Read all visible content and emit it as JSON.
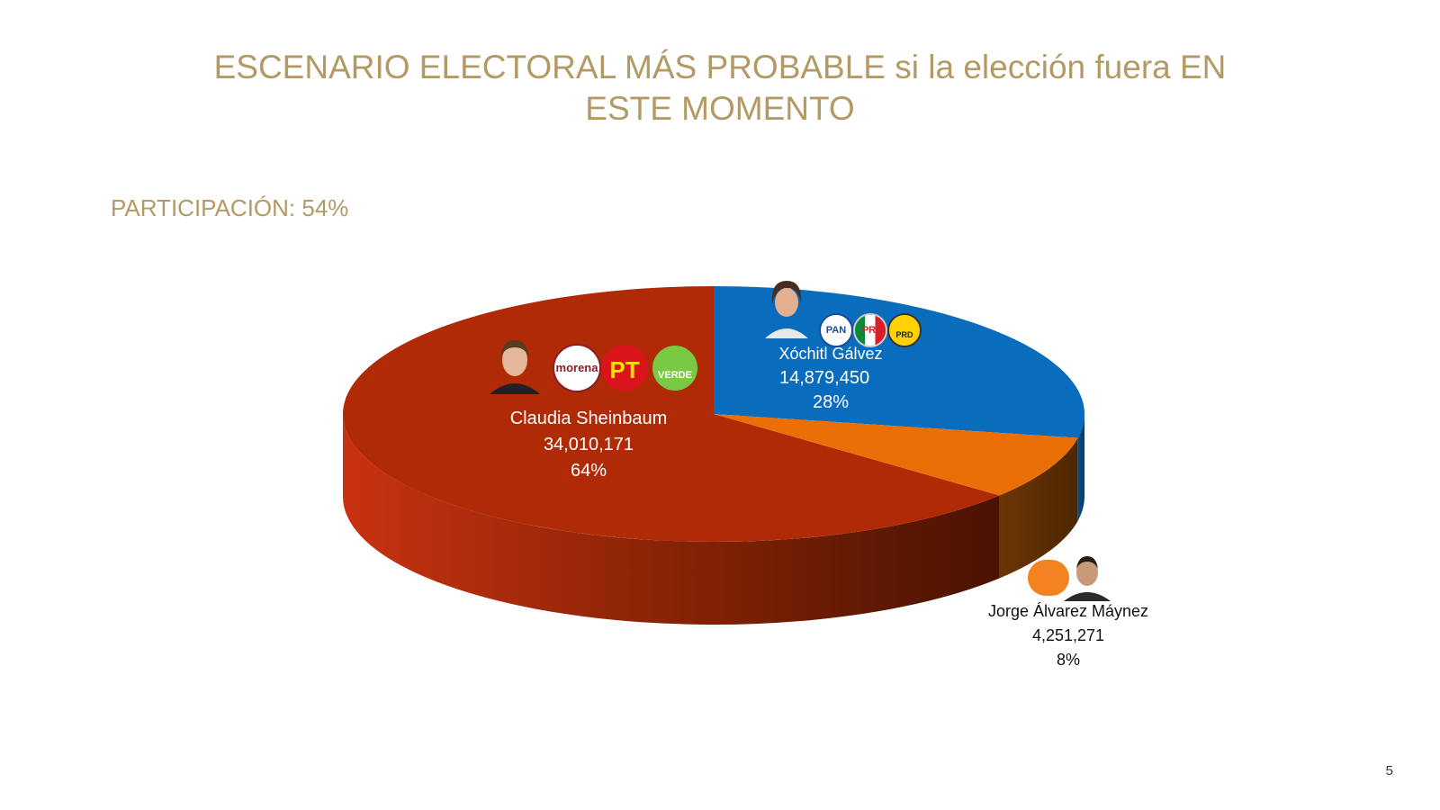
{
  "slide": {
    "title": "ESCENARIO ELECTORAL MÁS PROBABLE si la elección fuera EN ESTE MOMENTO",
    "participation": "PARTICIPACIÓN: 54%",
    "page_number": "5"
  },
  "logos": {
    "morena": "morena",
    "pt": "PT",
    "verde": "VERDE",
    "pan": "PAN",
    "pri": "PRI",
    "prd": "PRD"
  },
  "colors": {
    "sheinbaum": "#b02a06",
    "galvez": "#0a6cbc",
    "maynez": "#e96f06",
    "title": "#b39a64"
  },
  "chart_data": {
    "type": "pie",
    "title": "",
    "slices": [
      {
        "name": "Claudia Sheinbaum",
        "votes": "34,010,171",
        "percent_label": "64%",
        "value": 64
      },
      {
        "name": "Xóchitl Gálvez",
        "votes": "14,879,450",
        "percent_label": "28%",
        "value": 28
      },
      {
        "name": "Jorge Álvarez Máynez",
        "votes": "4,251,271",
        "percent_label": "8%",
        "value": 8
      }
    ]
  }
}
